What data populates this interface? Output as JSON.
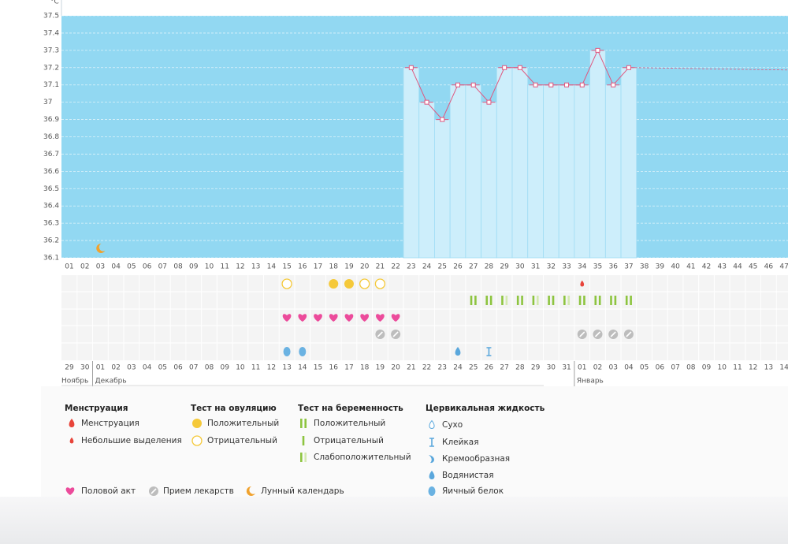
{
  "y_unit": "°C",
  "chart_data": {
    "type": "line",
    "categories": [
      "01",
      "02",
      "03",
      "04",
      "05",
      "06",
      "07",
      "08",
      "09",
      "10",
      "11",
      "12",
      "13",
      "14",
      "15",
      "16",
      "17",
      "18",
      "19",
      "20",
      "21",
      "22",
      "23",
      "24",
      "25",
      "26",
      "27",
      "28",
      "29",
      "30",
      "31",
      "32",
      "33",
      "34",
      "35",
      "36",
      "37",
      "38",
      "39",
      "40",
      "41",
      "42",
      "43",
      "44",
      "45",
      "46",
      "47"
    ],
    "values": [
      null,
      null,
      null,
      null,
      null,
      null,
      null,
      null,
      null,
      null,
      null,
      null,
      null,
      null,
      null,
      null,
      null,
      null,
      null,
      null,
      null,
      null,
      37.2,
      37.0,
      36.9,
      37.1,
      37.1,
      37.0,
      37.2,
      37.2,
      37.1,
      37.1,
      37.1,
      37.1,
      37.3,
      37.1,
      37.2,
      null,
      null,
      null,
      null,
      null,
      null,
      null,
      null,
      null,
      null
    ],
    "color": "#e0577f",
    "bar_color": "#cdeefb",
    "background": "#92d8f2",
    "ylim": [
      36.1,
      37.5
    ],
    "yticks": [
      37.5,
      37.4,
      37.3,
      37.2,
      37.1,
      37,
      36.9,
      36.8,
      36.7,
      36.6,
      36.5,
      36.4,
      36.3,
      36.2,
      36.1
    ],
    "grid": true
  },
  "markers": {
    "moon": [
      3
    ],
    "ovulation_negative": [
      15,
      20,
      21
    ],
    "ovulation_positive": [
      18,
      19
    ],
    "menstruation_light": [
      34
    ],
    "pregnancy_positive": [
      27,
      28,
      30,
      32,
      34,
      35,
      36,
      37
    ],
    "pregnancy_weak": [
      29,
      31,
      33
    ],
    "intercourse": [
      15,
      16,
      17,
      18,
      19,
      20,
      21,
      22
    ],
    "medication": [
      21,
      22,
      34,
      35,
      36,
      37
    ],
    "cervical_egg_white": [
      15,
      16
    ],
    "cervical_watery": [
      26
    ],
    "cervical_sticky": [
      28
    ]
  },
  "calendar": {
    "dates": [
      "29",
      "30",
      "01",
      "02",
      "03",
      "04",
      "05",
      "06",
      "07",
      "08",
      "09",
      "10",
      "11",
      "12",
      "13",
      "14",
      "15",
      "16",
      "17",
      "18",
      "19",
      "20",
      "21",
      "22",
      "23",
      "24",
      "25",
      "26",
      "27",
      "28",
      "29",
      "30",
      "31",
      "01",
      "02",
      "03",
      "04",
      "05",
      "06",
      "07",
      "08",
      "09",
      "10",
      "11",
      "12",
      "13",
      "14"
    ],
    "red": [
      false,
      true,
      true,
      false,
      false,
      false,
      false,
      false,
      true,
      true,
      false,
      false,
      false,
      false,
      false,
      true,
      true,
      false,
      false,
      false,
      false,
      false,
      true,
      true,
      false,
      false,
      false,
      false,
      false,
      true,
      true,
      false,
      false,
      false,
      false,
      false,
      true,
      true,
      false,
      false,
      false,
      false,
      false,
      true,
      true,
      false,
      false
    ],
    "months": [
      "Ноябрь",
      "Декабрь",
      "Январь"
    ]
  },
  "legend": {
    "sections": [
      {
        "title": "Менструация",
        "items": [
          "Менструация",
          "Небольшие выделения"
        ]
      },
      {
        "title": "Тест на овуляцию",
        "items": [
          "Положительный",
          "Отрицательный"
        ]
      },
      {
        "title": "Тест на беременность",
        "items": [
          "Положительный",
          "Отрицательный",
          "Слабоположительный"
        ]
      },
      {
        "title": "Цервикальная жидкость",
        "items": [
          "Сухо",
          "Клейкая",
          "Кремообразная",
          "Водянистая",
          "Яичный белок"
        ]
      }
    ],
    "bottom": [
      "Половой акт",
      "Прием лекарств",
      "Лунный календарь"
    ]
  }
}
